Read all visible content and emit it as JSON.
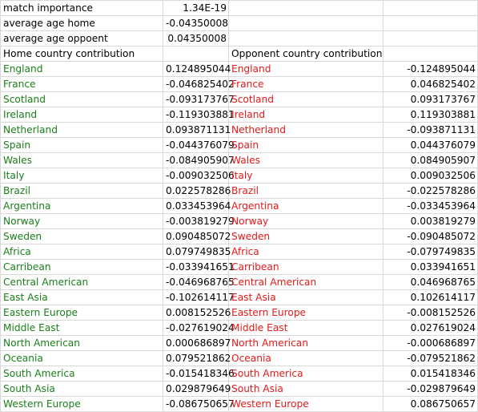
{
  "header_rows": [
    {
      "label": "match importance",
      "value": "1.34E-19"
    },
    {
      "label": "average age home",
      "value": "-0.04350008"
    },
    {
      "label": "average age oppoent",
      "value": "0.04350008"
    }
  ],
  "columns": {
    "home": "Home country contribution",
    "opponent": "Opponent country contribution"
  },
  "rows": [
    {
      "home_country": "England",
      "home_value": "0.124895044",
      "opp_country": "England",
      "opp_value": "-0.124895044"
    },
    {
      "home_country": "France",
      "home_value": "-0.046825402",
      "opp_country": "France",
      "opp_value": "0.046825402"
    },
    {
      "home_country": "Scotland",
      "home_value": "-0.093173767",
      "opp_country": "Scotland",
      "opp_value": "0.093173767"
    },
    {
      "home_country": "Ireland",
      "home_value": "-0.119303881",
      "opp_country": "Ireland",
      "opp_value": "0.119303881"
    },
    {
      "home_country": "Netherland",
      "home_value": "0.093871131",
      "opp_country": "Netherland",
      "opp_value": "-0.093871131"
    },
    {
      "home_country": "Spain",
      "home_value": "-0.044376079",
      "opp_country": "Spain",
      "opp_value": "0.044376079"
    },
    {
      "home_country": "Wales",
      "home_value": "-0.084905907",
      "opp_country": "Wales",
      "opp_value": "0.084905907"
    },
    {
      "home_country": "Italy",
      "home_value": "-0.009032506",
      "opp_country": "Italy",
      "opp_value": "0.009032506"
    },
    {
      "home_country": "Brazil",
      "home_value": "0.022578286",
      "opp_country": "Brazil",
      "opp_value": "-0.022578286"
    },
    {
      "home_country": "Argentina",
      "home_value": "0.033453964",
      "opp_country": "Argentina",
      "opp_value": "-0.033453964"
    },
    {
      "home_country": "Norway",
      "home_value": "-0.003819279",
      "opp_country": "Norway",
      "opp_value": "0.003819279"
    },
    {
      "home_country": "Sweden",
      "home_value": "0.090485072",
      "opp_country": "Sweden",
      "opp_value": "-0.090485072"
    },
    {
      "home_country": "Africa",
      "home_value": "0.079749835",
      "opp_country": "Africa",
      "opp_value": "-0.079749835"
    },
    {
      "home_country": "Carribean",
      "home_value": "-0.033941651",
      "opp_country": "Carribean",
      "opp_value": "0.033941651"
    },
    {
      "home_country": "Central American",
      "home_value": "-0.046968765",
      "opp_country": "Central American",
      "opp_value": "0.046968765"
    },
    {
      "home_country": "East Asia",
      "home_value": "-0.102614117",
      "opp_country": "East Asia",
      "opp_value": "0.102614117"
    },
    {
      "home_country": "Eastern Europe",
      "home_value": "0.008152526",
      "opp_country": "Eastern Europe",
      "opp_value": "-0.008152526"
    },
    {
      "home_country": "Middle East",
      "home_value": "-0.027619024",
      "opp_country": "Middle East",
      "opp_value": "0.027619024"
    },
    {
      "home_country": "North American",
      "home_value": "0.000686897",
      "opp_country": "North American",
      "opp_value": "-0.000686897"
    },
    {
      "home_country": "Oceania",
      "home_value": "0.079521862",
      "opp_country": "Oceania",
      "opp_value": "-0.079521862"
    },
    {
      "home_country": "South America",
      "home_value": "-0.015418346",
      "opp_country": "South America",
      "opp_value": "0.015418346"
    },
    {
      "home_country": "South Asia",
      "home_value": "0.029879649",
      "opp_country": "South Asia",
      "opp_value": "-0.029879649"
    },
    {
      "home_country": "Western Europe",
      "home_value": "-0.086750657",
      "opp_country": "Western Europe",
      "opp_value": "0.086750657"
    }
  ],
  "colors": {
    "home_text": "#1a7f1a",
    "opponent_text": "#e31a1a",
    "gridline": "#d9d9d9"
  }
}
